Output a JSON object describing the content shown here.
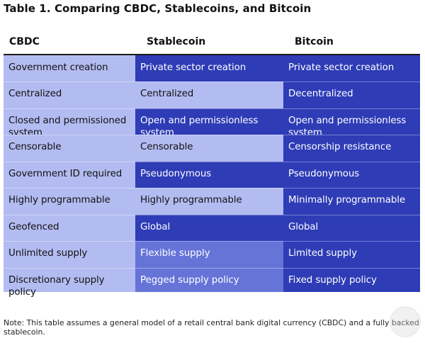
{
  "title": "Table 1. Comparing CBDC, Stablecoins, and Bitcoin",
  "columns": [
    "CBDC",
    "Stablecoin",
    "Bitcoin"
  ],
  "rows": [
    {
      "cbdc": "Government creation",
      "stablecoin": "Private sector creation",
      "bitcoin": "Private sector creation"
    },
    {
      "cbdc": "Centralized",
      "stablecoin": "Centralized",
      "bitcoin": "Decentralized"
    },
    {
      "cbdc": "Closed and permissioned system",
      "stablecoin": "Open and permissionless system",
      "bitcoin": "Open and permissionless system"
    },
    {
      "cbdc": "Censorable",
      "stablecoin": "Censorable",
      "bitcoin": "Censorship resistance"
    },
    {
      "cbdc": "Government ID required",
      "stablecoin": "Pseudonymous",
      "bitcoin": "Pseudonymous"
    },
    {
      "cbdc": "Highly programmable",
      "stablecoin": "Highly programmable",
      "bitcoin": "Minimally programmable"
    },
    {
      "cbdc": "Geofenced",
      "stablecoin": "Global",
      "bitcoin": "Global"
    },
    {
      "cbdc": "Unlimited supply",
      "stablecoin": "Flexible supply",
      "bitcoin": "Limited supply"
    },
    {
      "cbdc": "Discretionary supply policy",
      "stablecoin": "Pegged supply policy",
      "bitcoin": "Fixed supply policy"
    }
  ],
  "stablecoin_shading": [
    "dark",
    "light",
    "dark",
    "light",
    "dark",
    "light",
    "dark",
    "mid",
    "mid"
  ],
  "note": "Note: This table assumes a general model of a retail central bank digital currency (CBDC) and a fully backed stablecoin.",
  "colors": {
    "light": "#b3bcf1",
    "dark": "#2e3cb6",
    "mid": "#6674d8"
  }
}
